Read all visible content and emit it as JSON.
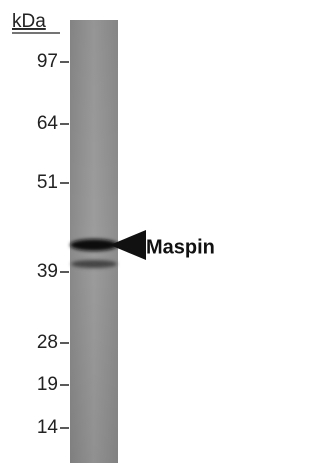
{
  "header": {
    "unit": "kDa"
  },
  "markers": [
    97,
    64,
    51,
    39,
    28,
    19,
    14
  ],
  "band_label": "Maspin"
}
